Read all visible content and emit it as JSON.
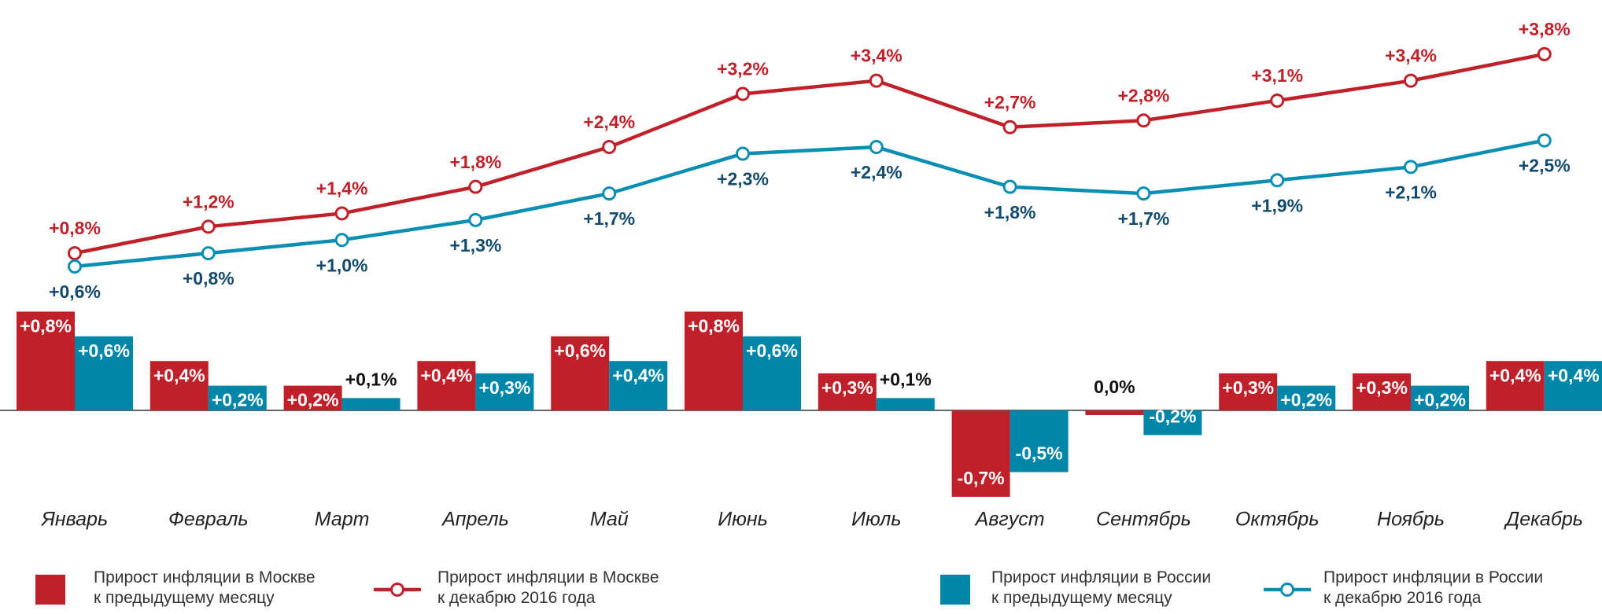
{
  "chart_data": {
    "type": "bar_line",
    "categories": [
      "Январь",
      "Февраль",
      "Март",
      "Апрель",
      "Май",
      "Июнь",
      "Июль",
      "Август",
      "Сентябрь",
      "Октябрь",
      "Ноябрь",
      "Декабрь"
    ],
    "series": [
      {
        "name": "Прирост инфляции в Москве\nк предыдущему месяцу",
        "type": "bar",
        "color": "#c0202a",
        "values": [
          0.8,
          0.4,
          0.2,
          0.4,
          0.6,
          0.8,
          0.3,
          -0.7,
          0.0,
          0.3,
          0.3,
          0.4
        ],
        "value_labels": [
          "+0,8%",
          "+0,4%",
          "+0,2%",
          "+0,4%",
          "+0,6%",
          "+0,8%",
          "+0,3%",
          "-0,7%",
          "0,0%",
          "+0,3%",
          "+0,3%",
          "+0,4%"
        ]
      },
      {
        "name": "Прирост инфляции в Москве\nк декабрю 2016 года",
        "type": "line",
        "color": "#c0202a",
        "label_color": "#c0202a",
        "label_side": "above",
        "values": [
          0.8,
          1.2,
          1.4,
          1.8,
          2.4,
          3.2,
          3.4,
          2.7,
          2.8,
          3.1,
          3.4,
          3.8
        ],
        "value_labels": [
          "+0,8%",
          "+1,2%",
          "+1,4%",
          "+1,8%",
          "+2,4%",
          "+3,2%",
          "+3,4%",
          "+2,7%",
          "+2,8%",
          "+3,1%",
          "+3,4%",
          "+3,8%"
        ]
      },
      {
        "name": "Прирост инфляции в России\nк предыдущему месяцу",
        "type": "bar",
        "color": "#0086a8",
        "values": [
          0.6,
          0.2,
          0.1,
          0.3,
          0.4,
          0.6,
          0.1,
          -0.5,
          -0.2,
          0.2,
          0.2,
          0.4
        ],
        "value_labels": [
          "+0,6%",
          "+0,2%",
          "+0,1%",
          "+0,3%",
          "+0,4%",
          "+0,6%",
          "+0,1%",
          "-0,5%",
          "-0,2%",
          "+0,2%",
          "+0,2%",
          "+0,4%"
        ]
      },
      {
        "name": "Прирост инфляции в России\nк декабрю 2016 года",
        "type": "line",
        "color": "#0a8fb2",
        "label_color": "#134a6e",
        "label_side": "below",
        "values": [
          0.6,
          0.8,
          1.0,
          1.3,
          1.7,
          2.3,
          2.4,
          1.8,
          1.7,
          1.9,
          2.1,
          2.5
        ],
        "value_labels": [
          "+0,6%",
          "+0,8%",
          "+1,0%",
          "+1,3%",
          "+1,7%",
          "+2,3%",
          "+2,4%",
          "+1,8%",
          "+1,7%",
          "+1,9%",
          "+2,1%",
          "+2,5%"
        ]
      }
    ]
  }
}
